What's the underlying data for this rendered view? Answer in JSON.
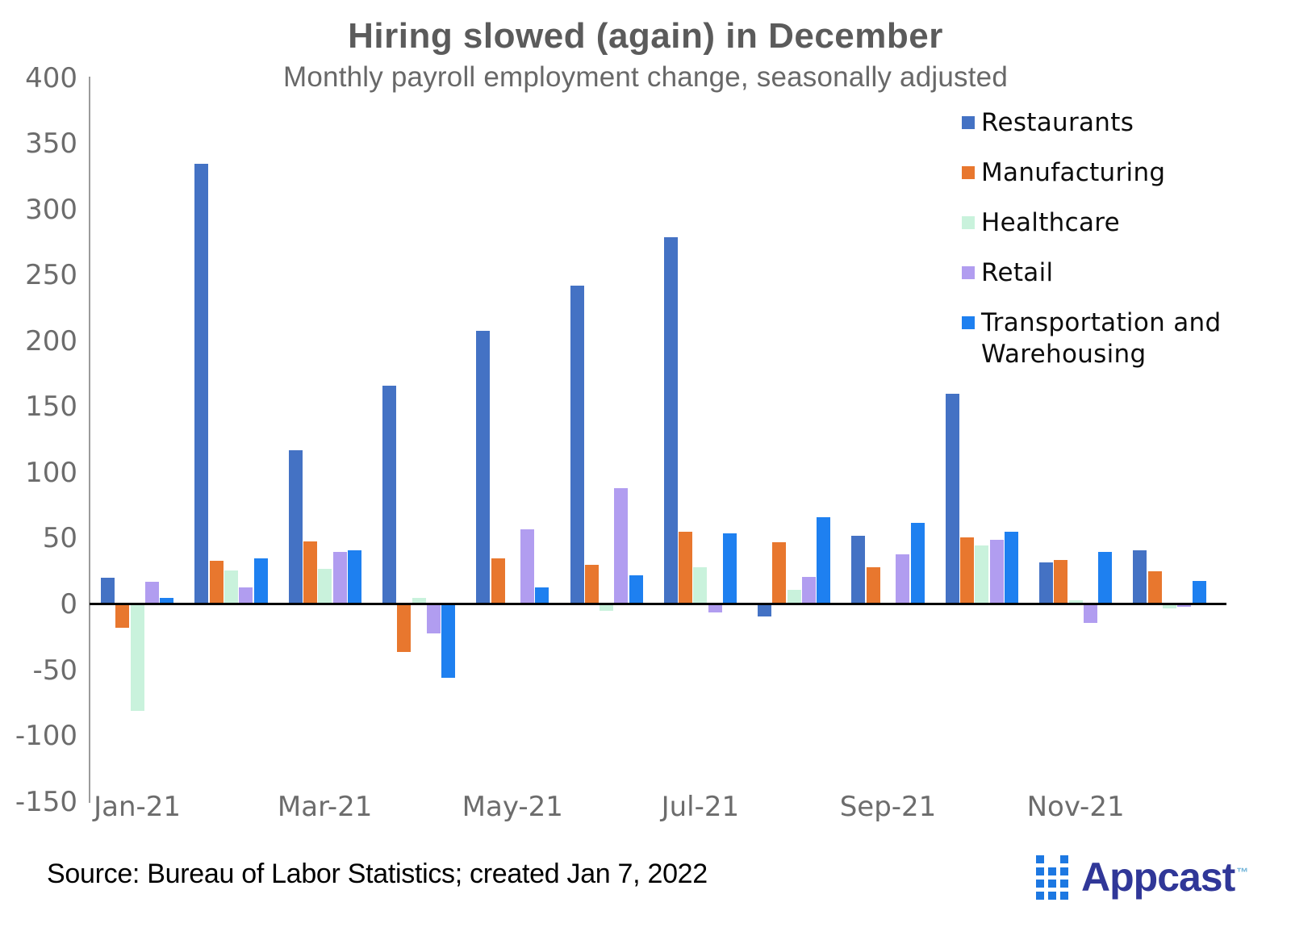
{
  "title": "Hiring slowed (again) in December",
  "subtitle": "Monthly payroll employment change, seasonally adjusted",
  "source": "Source: Bureau of Labor Statistics; created Jan 7, 2022",
  "logo": {
    "text": "Appcast",
    "tm": "™",
    "text_color": "#303798",
    "icon_color": "#1d78e2"
  },
  "chart_data": {
    "type": "bar",
    "categories": [
      "Jan-21",
      "Feb-21",
      "Mar-21",
      "Apr-21",
      "May-21",
      "Jun-21",
      "Jul-21",
      "Aug-21",
      "Sep-21",
      "Oct-21",
      "Nov-21",
      "Dec-21"
    ],
    "x_tick_labels": [
      "Jan-21",
      "Mar-21",
      "May-21",
      "Jul-21",
      "Sep-21",
      "Nov-21"
    ],
    "series": [
      {
        "name": "Restaurants",
        "color": "#4472C4",
        "values": [
          20,
          335,
          117,
          166,
          208,
          242,
          279,
          -9,
          52,
          160,
          32,
          41
        ]
      },
      {
        "name": "Manufacturing",
        "color": "#E8772E",
        "values": [
          -18,
          33,
          48,
          -36,
          35,
          30,
          55,
          47,
          28,
          51,
          34,
          25
        ]
      },
      {
        "name": "Healthcare",
        "color": "#C9F2DC",
        "values": [
          -81,
          26,
          27,
          5,
          0,
          -5,
          28,
          11,
          0,
          45,
          3,
          -3
        ]
      },
      {
        "name": "Retail",
        "color": "#B19DF0",
        "values": [
          17,
          13,
          40,
          -22,
          57,
          88,
          -6,
          21,
          38,
          49,
          -14,
          -2
        ]
      },
      {
        "name": "Transportation and Warehousing",
        "color": "#1E80F0",
        "values": [
          5,
          35,
          41,
          -56,
          13,
          22,
          54,
          66,
          62,
          55,
          40,
          18
        ]
      }
    ],
    "ylim": [
      -150,
      400
    ],
    "ytick_step": 50,
    "grid": false,
    "legend_position": "top-right",
    "zero_baseline": true
  }
}
